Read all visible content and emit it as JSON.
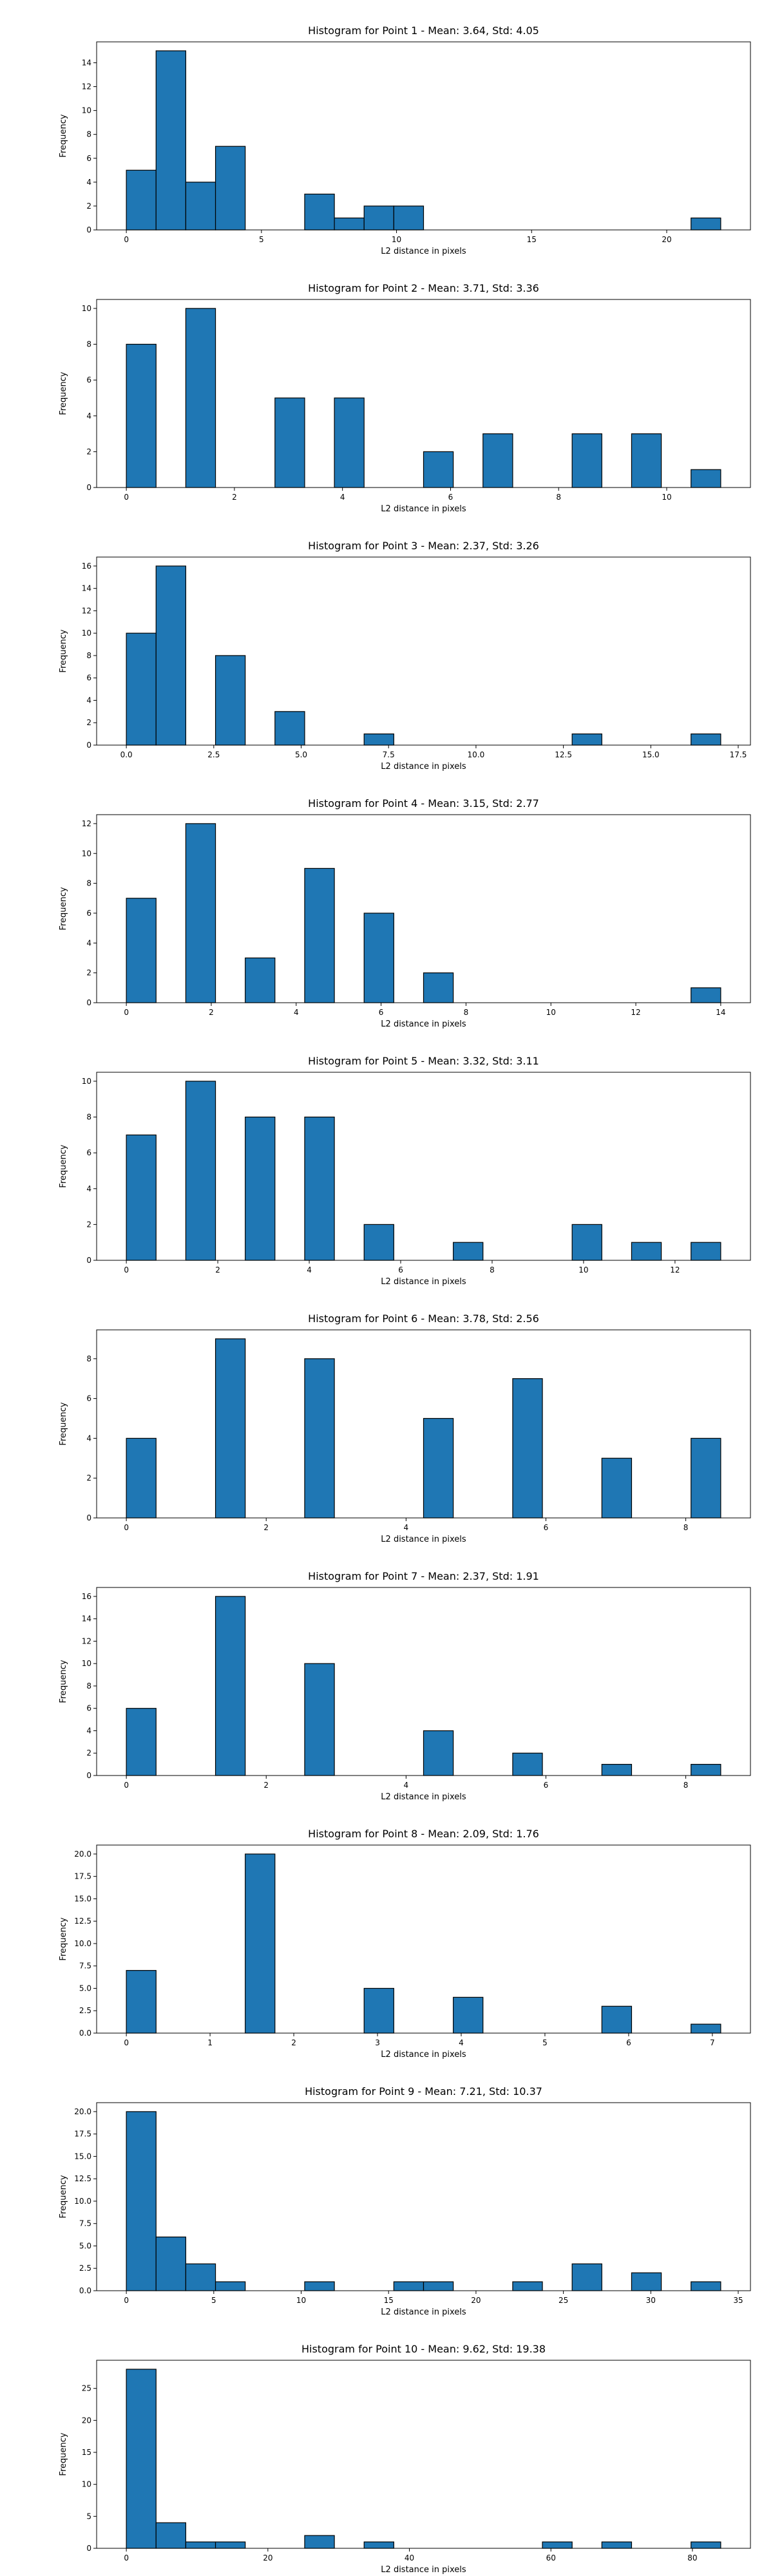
{
  "bar_color": "#1f77b4",
  "edge_color": "#000000",
  "chart_data": [
    {
      "type": "bar",
      "title": "Histogram for Point 1 - Mean: 3.64, Std: 4.05",
      "xlabel": "L2 distance in pixels",
      "ylabel": "Frequency",
      "xlim": [
        -1.1,
        23.1
      ],
      "ylim": [
        0,
        15.75
      ],
      "xticks": [
        0,
        5,
        10,
        15,
        20
      ],
      "xtick_labels": [
        "0",
        "5",
        "10",
        "15",
        "20"
      ],
      "yticks": [
        0,
        2,
        4,
        6,
        8,
        10,
        12,
        14
      ],
      "ytick_labels": [
        "0",
        "2",
        "4",
        "6",
        "8",
        "10",
        "12",
        "14"
      ],
      "bin_edges": [
        0,
        1.1,
        2.2,
        3.3,
        4.4,
        5.5,
        6.6,
        7.7,
        8.8,
        9.9,
        11.0,
        12.1,
        13.2,
        14.3,
        15.4,
        16.5,
        17.6,
        18.7,
        19.8,
        20.9,
        22.0
      ],
      "values": [
        5,
        15,
        4,
        7,
        0,
        0,
        3,
        1,
        2,
        2,
        0,
        0,
        0,
        0,
        0,
        0,
        0,
        0,
        0,
        1
      ]
    },
    {
      "type": "bar",
      "title": "Histogram for Point 2 - Mean: 3.71, Std: 3.36",
      "xlabel": "L2 distance in pixels",
      "ylabel": "Frequency",
      "xlim": [
        -0.55,
        11.55
      ],
      "ylim": [
        0,
        10.5
      ],
      "xticks": [
        0,
        2,
        4,
        6,
        8,
        10
      ],
      "xtick_labels": [
        "0",
        "2",
        "4",
        "6",
        "8",
        "10"
      ],
      "yticks": [
        0,
        2,
        4,
        6,
        8,
        10
      ],
      "ytick_labels": [
        "0",
        "2",
        "4",
        "6",
        "8",
        "10"
      ],
      "bin_edges": [
        0,
        0.55,
        1.1,
        1.65,
        2.2,
        2.75,
        3.3,
        3.85,
        4.4,
        4.95,
        5.5,
        6.05,
        6.6,
        7.15,
        7.7,
        8.25,
        8.8,
        9.35,
        9.9,
        10.45,
        11.0
      ],
      "values": [
        8,
        0,
        10,
        0,
        0,
        5,
        0,
        5,
        0,
        0,
        2,
        0,
        3,
        0,
        0,
        3,
        0,
        3,
        0,
        1
      ]
    },
    {
      "type": "bar",
      "title": "Histogram for Point 3 - Mean: 2.37, Std: 3.26",
      "xlabel": "L2 distance in pixels",
      "ylabel": "Frequency",
      "xlim": [
        -0.85,
        17.85
      ],
      "ylim": [
        0,
        16.8
      ],
      "xticks": [
        0.0,
        2.5,
        5.0,
        7.5,
        10.0,
        12.5,
        15.0,
        17.5
      ],
      "xtick_labels": [
        "0.0",
        "2.5",
        "5.0",
        "7.5",
        "10.0",
        "12.5",
        "15.0",
        "17.5"
      ],
      "yticks": [
        0,
        2,
        4,
        6,
        8,
        10,
        12,
        14,
        16
      ],
      "ytick_labels": [
        "0",
        "2",
        "4",
        "6",
        "8",
        "10",
        "12",
        "14",
        "16"
      ],
      "bin_edges": [
        0,
        0.85,
        1.7,
        2.55,
        3.4,
        4.25,
        5.1,
        5.95,
        6.8,
        7.65,
        8.5,
        9.35,
        10.2,
        11.05,
        11.9,
        12.75,
        13.6,
        14.45,
        15.3,
        16.15,
        17.0
      ],
      "values": [
        10,
        16,
        0,
        8,
        0,
        3,
        0,
        0,
        1,
        0,
        0,
        0,
        0,
        0,
        0,
        1,
        0,
        0,
        0,
        1
      ]
    },
    {
      "type": "bar",
      "title": "Histogram for Point 4 - Mean: 3.15, Std: 2.77",
      "xlabel": "L2 distance in pixels",
      "ylabel": "Frequency",
      "xlim": [
        -0.7,
        14.7
      ],
      "ylim": [
        0,
        12.6
      ],
      "xticks": [
        0,
        2,
        4,
        6,
        8,
        10,
        12,
        14
      ],
      "xtick_labels": [
        "0",
        "2",
        "4",
        "6",
        "8",
        "10",
        "12",
        "14"
      ],
      "yticks": [
        0,
        2,
        4,
        6,
        8,
        10,
        12
      ],
      "ytick_labels": [
        "0",
        "2",
        "4",
        "6",
        "8",
        "10",
        "12"
      ],
      "bin_edges": [
        0,
        0.7,
        1.4,
        2.1,
        2.8,
        3.5,
        4.2,
        4.9,
        5.6,
        6.3,
        7.0,
        7.7,
        8.4,
        9.1,
        9.8,
        10.5,
        11.2,
        11.9,
        12.6,
        13.3,
        14.0
      ],
      "values": [
        7,
        0,
        12,
        0,
        3,
        0,
        9,
        0,
        6,
        0,
        2,
        0,
        0,
        0,
        0,
        0,
        0,
        0,
        0,
        1
      ]
    },
    {
      "type": "bar",
      "title": "Histogram for Point 5 - Mean: 3.32, Std: 3.11",
      "xlabel": "L2 distance in pixels",
      "ylabel": "Frequency",
      "xlim": [
        -0.65,
        13.65
      ],
      "ylim": [
        0,
        10.5
      ],
      "xticks": [
        0,
        2,
        4,
        6,
        8,
        10,
        12
      ],
      "xtick_labels": [
        "0",
        "2",
        "4",
        "6",
        "8",
        "10",
        "12"
      ],
      "yticks": [
        0,
        2,
        4,
        6,
        8,
        10
      ],
      "ytick_labels": [
        "0",
        "2",
        "4",
        "6",
        "8",
        "10"
      ],
      "bin_edges": [
        0,
        0.65,
        1.3,
        1.95,
        2.6,
        3.25,
        3.9,
        4.55,
        5.2,
        5.85,
        6.5,
        7.15,
        7.8,
        8.45,
        9.1,
        9.75,
        10.4,
        11.05,
        11.7,
        12.35,
        13.0
      ],
      "values": [
        7,
        0,
        10,
        0,
        8,
        0,
        8,
        0,
        2,
        0,
        0,
        1,
        0,
        0,
        0,
        2,
        0,
        1,
        0,
        1
      ]
    },
    {
      "type": "bar",
      "title": "Histogram for Point 6 - Mean: 3.78, Std: 2.56",
      "xlabel": "L2 distance in pixels",
      "ylabel": "Frequency",
      "xlim": [
        -0.425,
        8.925
      ],
      "ylim": [
        0,
        9.45
      ],
      "xticks": [
        0,
        2,
        4,
        6,
        8
      ],
      "xtick_labels": [
        "0",
        "2",
        "4",
        "6",
        "8"
      ],
      "yticks": [
        0,
        2,
        4,
        6,
        8
      ],
      "ytick_labels": [
        "0",
        "2",
        "4",
        "6",
        "8"
      ],
      "bin_edges": [
        0,
        0.425,
        0.85,
        1.275,
        1.7,
        2.125,
        2.55,
        2.975,
        3.4,
        3.825,
        4.25,
        4.675,
        5.1,
        5.525,
        5.95,
        6.375,
        6.8,
        7.225,
        7.65,
        8.075,
        8.5
      ],
      "values": [
        4,
        0,
        0,
        9,
        0,
        0,
        8,
        0,
        0,
        0,
        5,
        0,
        0,
        7,
        0,
        0,
        3,
        0,
        0,
        4
      ]
    },
    {
      "type": "bar",
      "title": "Histogram for Point 7 - Mean: 2.37, Std: 1.91",
      "xlabel": "L2 distance in pixels",
      "ylabel": "Frequency",
      "xlim": [
        -0.425,
        8.925
      ],
      "ylim": [
        0,
        16.8
      ],
      "xticks": [
        0,
        2,
        4,
        6,
        8
      ],
      "xtick_labels": [
        "0",
        "2",
        "4",
        "6",
        "8"
      ],
      "yticks": [
        0,
        2,
        4,
        6,
        8,
        10,
        12,
        14,
        16
      ],
      "ytick_labels": [
        "0",
        "2",
        "4",
        "6",
        "8",
        "10",
        "12",
        "14",
        "16"
      ],
      "bin_edges": [
        0,
        0.425,
        0.85,
        1.275,
        1.7,
        2.125,
        2.55,
        2.975,
        3.4,
        3.825,
        4.25,
        4.675,
        5.1,
        5.525,
        5.95,
        6.375,
        6.8,
        7.225,
        7.65,
        8.075,
        8.5
      ],
      "values": [
        6,
        0,
        0,
        16,
        0,
        0,
        10,
        0,
        0,
        0,
        4,
        0,
        0,
        2,
        0,
        0,
        1,
        0,
        0,
        1
      ]
    },
    {
      "type": "bar",
      "title": "Histogram for Point 8 - Mean: 2.09, Std: 1.76",
      "xlabel": "L2 distance in pixels",
      "ylabel": "Frequency",
      "xlim": [
        -0.355,
        7.455
      ],
      "ylim": [
        0,
        21.0
      ],
      "xticks": [
        0,
        1,
        2,
        3,
        4,
        5,
        6,
        7
      ],
      "xtick_labels": [
        "0",
        "1",
        "2",
        "3",
        "4",
        "5",
        "6",
        "7"
      ],
      "yticks": [
        0,
        2.5,
        5.0,
        7.5,
        10.0,
        12.5,
        15.0,
        17.5,
        20.0
      ],
      "ytick_labels": [
        "0.0",
        "2.5",
        "5.0",
        "7.5",
        "10.0",
        "12.5",
        "15.0",
        "17.5",
        "20.0"
      ],
      "bin_edges": [
        0,
        0.355,
        0.71,
        1.065,
        1.42,
        1.775,
        2.13,
        2.485,
        2.84,
        3.195,
        3.55,
        3.905,
        4.26,
        4.615,
        4.97,
        5.325,
        5.68,
        6.035,
        6.39,
        6.745,
        7.1
      ],
      "values": [
        7,
        0,
        0,
        0,
        20,
        0,
        0,
        0,
        5,
        0,
        0,
        4,
        0,
        0,
        0,
        0,
        3,
        0,
        0,
        1
      ]
    },
    {
      "type": "bar",
      "title": "Histogram for Point 9 - Mean: 7.21, Std: 10.37",
      "xlabel": "L2 distance in pixels",
      "ylabel": "Frequency",
      "xlim": [
        -1.7,
        35.7
      ],
      "ylim": [
        0,
        21.0
      ],
      "xticks": [
        0,
        5,
        10,
        15,
        20,
        25,
        30,
        35
      ],
      "xtick_labels": [
        "0",
        "5",
        "10",
        "15",
        "20",
        "25",
        "30",
        "35"
      ],
      "yticks": [
        0,
        2.5,
        5.0,
        7.5,
        10.0,
        12.5,
        15.0,
        17.5,
        20.0
      ],
      "ytick_labels": [
        "0.0",
        "2.5",
        "5.0",
        "7.5",
        "10.0",
        "12.5",
        "15.0",
        "17.5",
        "20.0"
      ],
      "bin_edges": [
        0,
        1.7,
        3.4,
        5.1,
        6.8,
        8.5,
        10.2,
        11.9,
        13.6,
        15.3,
        17.0,
        18.7,
        20.4,
        22.1,
        23.8,
        25.5,
        27.2,
        28.9,
        30.6,
        32.3,
        34.0
      ],
      "values": [
        20,
        6,
        3,
        1,
        0,
        0,
        1,
        0,
        0,
        1,
        1,
        0,
        0,
        1,
        0,
        3,
        0,
        2,
        0,
        1
      ]
    },
    {
      "type": "bar",
      "title": "Histogram for Point 10 - Mean: 9.62, Std: 19.38",
      "xlabel": "L2 distance in pixels",
      "ylabel": "Frequency",
      "xlim": [
        -4.2,
        88.2
      ],
      "ylim": [
        0,
        29.4
      ],
      "xticks": [
        0,
        20,
        40,
        60,
        80
      ],
      "xtick_labels": [
        "0",
        "20",
        "40",
        "60",
        "80"
      ],
      "yticks": [
        0,
        5,
        10,
        15,
        20,
        25
      ],
      "ytick_labels": [
        "0",
        "5",
        "10",
        "15",
        "20",
        "25"
      ],
      "bin_edges": [
        0,
        4.2,
        8.4,
        12.6,
        16.8,
        21.0,
        25.2,
        29.4,
        33.6,
        37.8,
        42.0,
        46.2,
        50.4,
        54.6,
        58.8,
        63.0,
        67.2,
        71.4,
        75.6,
        79.8,
        84.0
      ],
      "values": [
        28,
        4,
        1,
        1,
        0,
        0,
        2,
        0,
        1,
        0,
        0,
        0,
        0,
        0,
        1,
        0,
        1,
        0,
        0,
        1
      ]
    }
  ]
}
